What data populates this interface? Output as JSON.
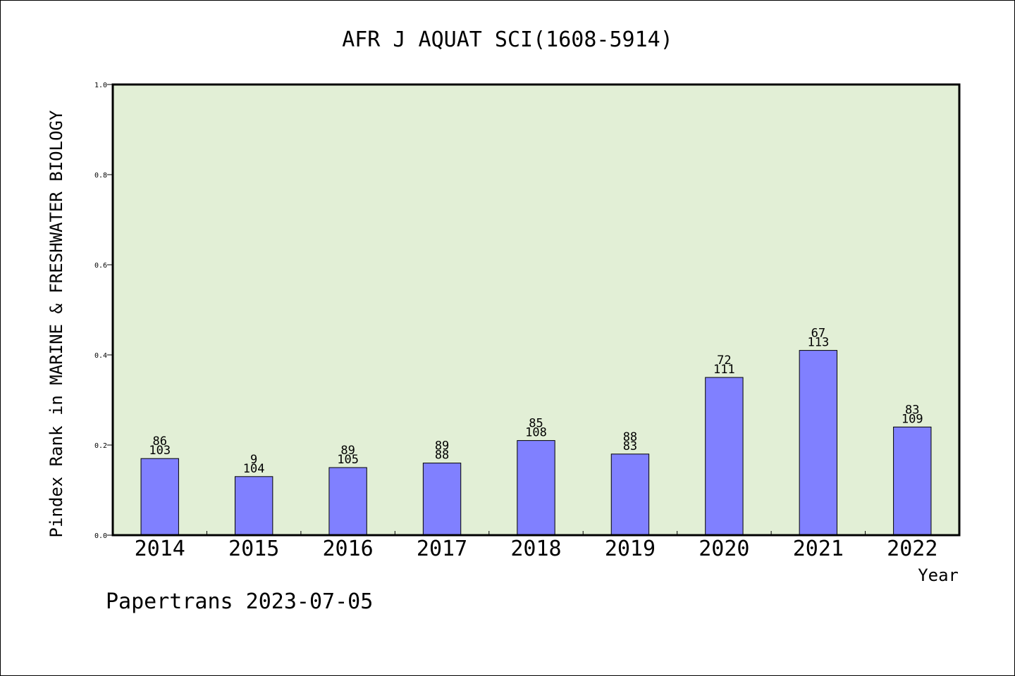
{
  "chart_data": {
    "type": "bar",
    "title": "AFR J AQUAT SCI(1608-5914)",
    "ylabel": "Pindex Rank in MARINE & FRESHWATER BIOLOGY",
    "xlabel": "Year",
    "categories": [
      "2014",
      "2015",
      "2016",
      "2017",
      "2018",
      "2019",
      "2020",
      "2021",
      "2022"
    ],
    "values": [
      0.17,
      0.13,
      0.15,
      0.16,
      0.21,
      0.18,
      0.35,
      0.41,
      0.24
    ],
    "labels_top": [
      "86",
      "9",
      "89",
      "89",
      "85",
      "88",
      "72",
      "67",
      "83"
    ],
    "labels_bottom": [
      "103",
      "104",
      "105",
      "88",
      "108",
      "83",
      "111",
      "113",
      "109"
    ],
    "ylim": [
      0,
      1.0
    ],
    "yticks": [
      "0.0",
      "0.2",
      "0.4",
      "0.6",
      "0.8",
      "1.0"
    ],
    "grid": false,
    "bar_color": "#8080ff",
    "plot_background": "#e2efd6"
  },
  "footer": "Papertrans 2023-07-05"
}
